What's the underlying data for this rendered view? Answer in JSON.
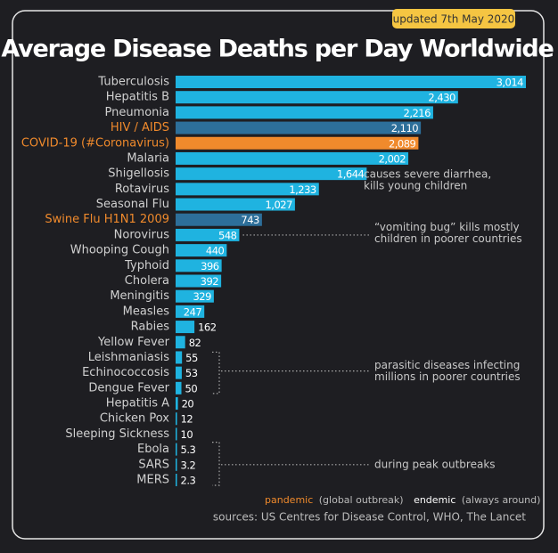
{
  "chart_data": {
    "type": "bar",
    "orientation": "horizontal",
    "title": "Average Disease Deaths per Day Worldwide",
    "badge": "updated 7th May 2020",
    "categories": [
      "Tuberculosis",
      "Hepatitis B",
      "Pneumonia",
      "HIV / AIDS",
      "COVID-19 (#Coronavirus)",
      "Malaria",
      "Shigellosis",
      "Rotavirus",
      "Seasonal Flu",
      "Swine Flu H1N1 2009",
      "Norovirus",
      "Whooping Cough",
      "Typhoid",
      "Cholera",
      "Meningitis",
      "Measles",
      "Rabies",
      "Yellow Fever",
      "Leishmaniasis",
      "Echinococcosis",
      "Dengue Fever",
      "Hepatitis A",
      "Chicken Pox",
      "Sleeping Sickness",
      "Ebola",
      "SARS",
      "MERS"
    ],
    "values": [
      3014,
      2430,
      2216,
      2110,
      2089,
      2002,
      1644,
      1233,
      1027,
      743,
      548,
      440,
      396,
      392,
      329,
      247,
      162,
      82,
      55,
      53,
      50,
      20,
      12,
      10,
      5.3,
      3.2,
      2.3
    ],
    "value_labels": [
      "3,014",
      "2,430",
      "2,216",
      "2,110",
      "2,089",
      "2,002",
      "1,644",
      "1,233",
      "1,027",
      "743",
      "548",
      "440",
      "396",
      "392",
      "329",
      "247",
      "162",
      "82",
      "55",
      "53",
      "50",
      "20",
      "12",
      "10",
      "5.3",
      "3.2",
      "2.3"
    ],
    "colors": [
      "#1fb3e0",
      "#1fb3e0",
      "#1fb3e0",
      "#2d6f9a",
      "#f08a2c",
      "#1fb3e0",
      "#1fb3e0",
      "#1fb3e0",
      "#1fb3e0",
      "#2d6f9a",
      "#1fb3e0",
      "#1fb3e0",
      "#1fb3e0",
      "#1fb3e0",
      "#1fb3e0",
      "#1fb3e0",
      "#1fb3e0",
      "#1fb3e0",
      "#1fb3e0",
      "#1fb3e0",
      "#1fb3e0",
      "#1fb3e0",
      "#1fb3e0",
      "#1fb3e0",
      "#1fb3e0",
      "#1fb3e0",
      "#1fb3e0"
    ],
    "label_colors": [
      "#d0d0d0",
      "#d0d0d0",
      "#d0d0d0",
      "#f08a2c",
      "#f08a2c",
      "#d0d0d0",
      "#d0d0d0",
      "#d0d0d0",
      "#d0d0d0",
      "#f08a2c",
      "#d0d0d0",
      "#d0d0d0",
      "#d0d0d0",
      "#d0d0d0",
      "#d0d0d0",
      "#d0d0d0",
      "#d0d0d0",
      "#d0d0d0",
      "#d0d0d0",
      "#d0d0d0",
      "#d0d0d0",
      "#d0d0d0",
      "#d0d0d0",
      "#d0d0d0",
      "#d0d0d0",
      "#d0d0d0",
      "#d0d0d0"
    ],
    "annotations": [
      [
        "causes severe diarrhea,",
        "kills young children"
      ],
      [
        "“vomiting bug” kills mostly",
        "children in poorer countries"
      ],
      [
        "parasitic diseases infecting",
        "millions in poorer countries"
      ],
      [
        "during peak outbreaks"
      ]
    ],
    "legend": {
      "pandemic": "pandemic",
      "pandemic_note": "(global outbreak)",
      "endemic": "endemic",
      "endemic_note": "(always around)"
    },
    "source": "sources: US Centres for Disease Control, WHO, The Lancet"
  }
}
